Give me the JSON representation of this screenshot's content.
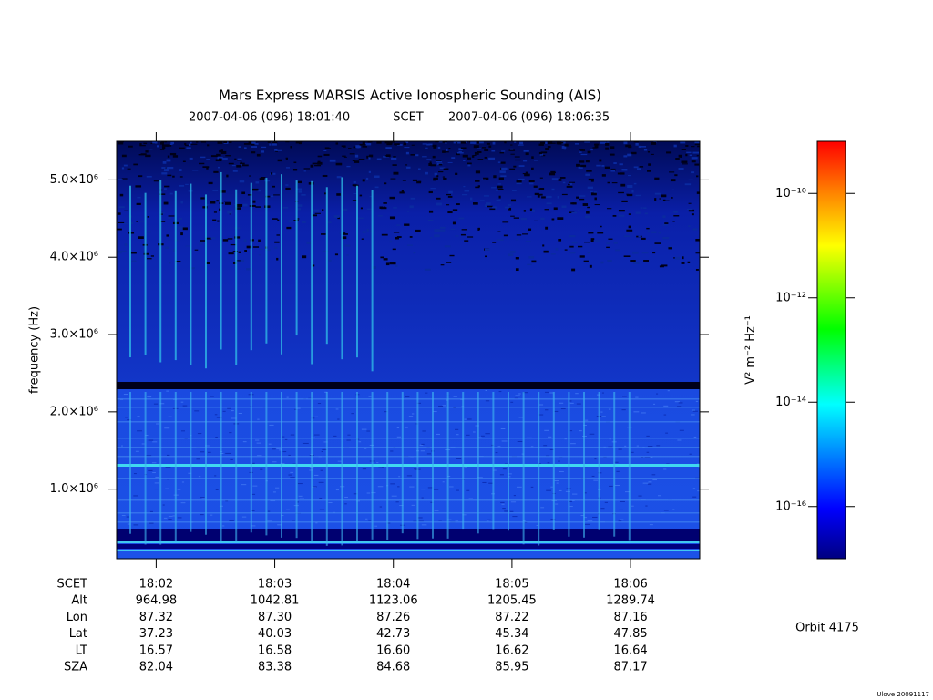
{
  "chart_data": {
    "type": "spectrogram",
    "title": "Mars Express MARSIS Active Ionospheric Sounding (AIS)",
    "start_time": "2007-04-06 (096) 18:01:40",
    "time_system": "SCET",
    "end_time": "2007-04-06 (096) 18:06:35",
    "ylabel": "frequency (Hz)",
    "xlim": [
      64900,
      65195
    ],
    "xticks": [
      {
        "value": 64920,
        "label": "18:02"
      },
      {
        "value": 64980,
        "label": "18:03"
      },
      {
        "value": 65040,
        "label": "18:04"
      },
      {
        "value": 65100,
        "label": "18:05"
      },
      {
        "value": 65160,
        "label": "18:06"
      }
    ],
    "ylim": [
      100000,
      5500000
    ],
    "yticks": [
      {
        "value": 1000000,
        "label": "1.0×10⁶"
      },
      {
        "value": 2000000,
        "label": "2.0×10⁶"
      },
      {
        "value": 3000000,
        "label": "3.0×10⁶"
      },
      {
        "value": 4000000,
        "label": "4.0×10⁶"
      },
      {
        "value": 5000000,
        "label": "5.0×10⁶"
      }
    ],
    "colorbar": {
      "label": "V² m⁻² Hz⁻¹",
      "log": true,
      "lim": [
        1e-17,
        1e-09
      ],
      "ticks": [
        {
          "value": 1e-16,
          "label": "10⁻¹⁶"
        },
        {
          "value": 1e-14,
          "label": "10⁻¹⁴"
        },
        {
          "value": 1e-12,
          "label": "10⁻¹²"
        },
        {
          "value": 1e-10,
          "label": "10⁻¹⁰"
        }
      ]
    },
    "ephemeris": {
      "row_labels": [
        "SCET",
        "Alt",
        "Lon",
        "Lat",
        "LT",
        "SZA"
      ],
      "rows": [
        [
          "964.98",
          "1042.81",
          "1123.06",
          "1205.45",
          "1289.74"
        ],
        [
          "87.32",
          "87.30",
          "87.26",
          "87.22",
          "87.16"
        ],
        [
          "37.23",
          "40.03",
          "42.73",
          "45.34",
          "47.85"
        ],
        [
          "16.57",
          "16.58",
          "16.60",
          "16.62",
          "16.64"
        ],
        [
          "82.04",
          "83.38",
          "84.68",
          "85.95",
          "87.17"
        ]
      ]
    }
  },
  "orbit": "Orbit 4175",
  "footer": "Ulove 20091117"
}
